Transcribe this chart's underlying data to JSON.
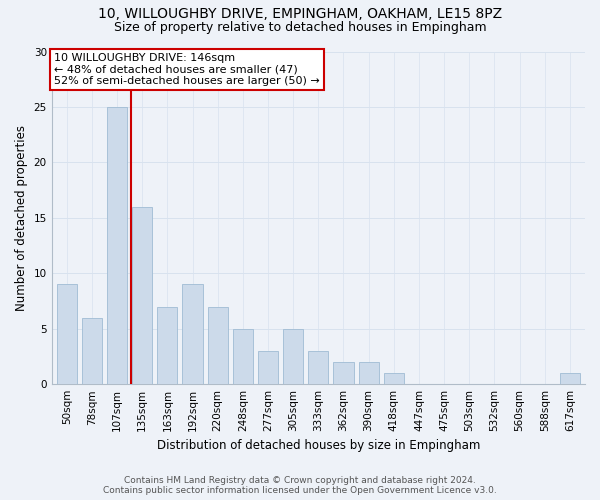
{
  "title": "10, WILLOUGHBY DRIVE, EMPINGHAM, OAKHAM, LE15 8PZ",
  "subtitle": "Size of property relative to detached houses in Empingham",
  "xlabel": "Distribution of detached houses by size in Empingham",
  "ylabel": "Number of detached properties",
  "categories": [
    "50sqm",
    "78sqm",
    "107sqm",
    "135sqm",
    "163sqm",
    "192sqm",
    "220sqm",
    "248sqm",
    "277sqm",
    "305sqm",
    "333sqm",
    "362sqm",
    "390sqm",
    "418sqm",
    "447sqm",
    "475sqm",
    "503sqm",
    "532sqm",
    "560sqm",
    "588sqm",
    "617sqm"
  ],
  "values": [
    9,
    6,
    25,
    16,
    7,
    9,
    7,
    5,
    3,
    5,
    3,
    2,
    2,
    1,
    0,
    0,
    0,
    0,
    0,
    0,
    1
  ],
  "bar_color": "#ccdaea",
  "bar_edge_color": "#a0bcd4",
  "property_line_label": "10 WILLOUGHBY DRIVE: 146sqm",
  "annotation_line1": "← 48% of detached houses are smaller (47)",
  "annotation_line2": "52% of semi-detached houses are larger (50) →",
  "annotation_box_color": "#ffffff",
  "annotation_box_edge_color": "#cc0000",
  "vline_color": "#cc0000",
  "vline_x_index": 3.07,
  "ylim": [
    0,
    30
  ],
  "yticks": [
    0,
    5,
    10,
    15,
    20,
    25,
    30
  ],
  "grid_color": "#d8e2ee",
  "footer_line1": "Contains HM Land Registry data © Crown copyright and database right 2024.",
  "footer_line2": "Contains public sector information licensed under the Open Government Licence v3.0.",
  "background_color": "#eef2f8",
  "title_fontsize": 10,
  "subtitle_fontsize": 9,
  "axis_label_fontsize": 8.5,
  "tick_fontsize": 7.5,
  "annotation_fontsize": 8,
  "footer_fontsize": 6.5
}
